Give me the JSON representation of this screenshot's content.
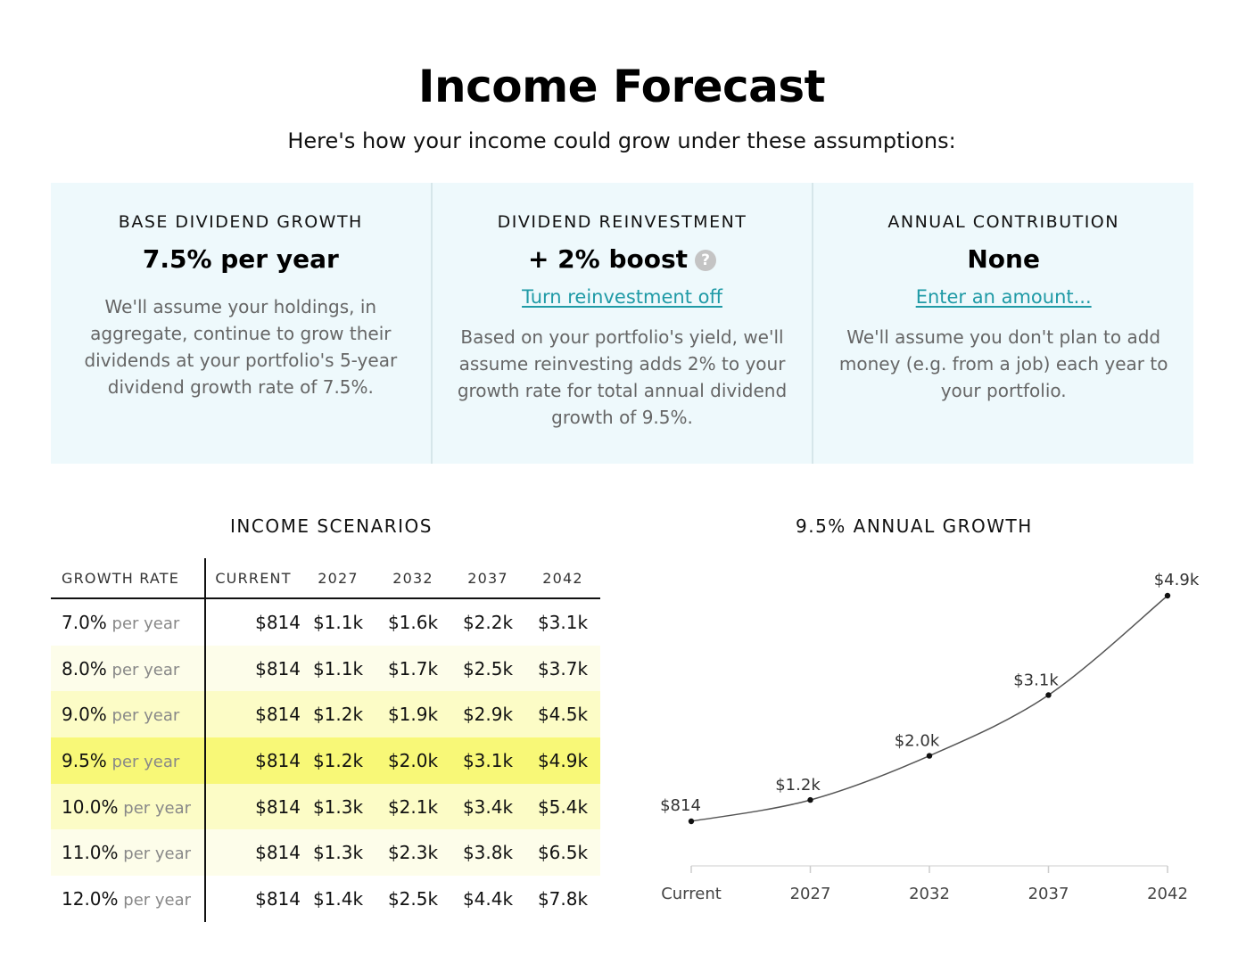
{
  "page": {
    "title": "Income Forecast",
    "subtitle": "Here's how your income could grow under these assumptions:"
  },
  "assumptions": [
    {
      "heading": "BASE DIVIDEND GROWTH",
      "value": "7.5% per year",
      "link": "",
      "description": "We'll assume your holdings, in aggregate, continue to grow their dividends at your portfolio's 5-year dividend growth rate of 7.5%."
    },
    {
      "heading": "DIVIDEND REINVESTMENT",
      "value": "+ 2% boost",
      "help_icon": "?",
      "link": "Turn reinvestment off",
      "description": "Based on your portfolio's yield, we'll assume reinvesting adds 2% to your growth rate for total annual dividend growth of 9.5%."
    },
    {
      "heading": "ANNUAL CONTRIBUTION",
      "value": "None",
      "link": "Enter an amount...",
      "description": "We'll assume you don't plan to add money (e.g. from a job) each year to your portfolio."
    }
  ],
  "scenarios": {
    "heading": "INCOME SCENARIOS",
    "columns": [
      "GROWTH RATE",
      "CURRENT",
      "2027",
      "2032",
      "2037",
      "2042"
    ],
    "per_year_label": "per year",
    "selected_rate": "9.5%",
    "rows": [
      {
        "rate": "7.0%",
        "values": [
          "$814",
          "$1.1k",
          "$1.6k",
          "$2.2k",
          "$3.1k"
        ]
      },
      {
        "rate": "8.0%",
        "values": [
          "$814",
          "$1.1k",
          "$1.7k",
          "$2.5k",
          "$3.7k"
        ]
      },
      {
        "rate": "9.0%",
        "values": [
          "$814",
          "$1.2k",
          "$1.9k",
          "$2.9k",
          "$4.5k"
        ]
      },
      {
        "rate": "9.5%",
        "values": [
          "$814",
          "$1.2k",
          "$2.0k",
          "$3.1k",
          "$4.9k"
        ]
      },
      {
        "rate": "10.0%",
        "values": [
          "$814",
          "$1.3k",
          "$2.1k",
          "$3.4k",
          "$5.4k"
        ]
      },
      {
        "rate": "11.0%",
        "values": [
          "$814",
          "$1.3k",
          "$2.3k",
          "$3.8k",
          "$6.5k"
        ]
      },
      {
        "rate": "12.0%",
        "values": [
          "$814",
          "$1.4k",
          "$2.5k",
          "$4.4k",
          "$7.8k"
        ]
      }
    ],
    "row_colors": [
      "#ffffff",
      "#fdfdea",
      "#fcfcc6",
      "#f8f877",
      "#fcfcc6",
      "#fdfdea",
      "#ffffff"
    ]
  },
  "chart_data": {
    "type": "line",
    "title": "9.5% ANNUAL GROWTH",
    "categories": [
      "Current",
      "2027",
      "2032",
      "2037",
      "2042"
    ],
    "series": [
      {
        "values": [
          814,
          1200,
          2000,
          3100,
          4900
        ],
        "labels": [
          "$814",
          "$1.2k",
          "$2.0k",
          "$3.1k",
          "$4.9k"
        ]
      }
    ],
    "xlabel": "",
    "ylabel": "",
    "ylim": [
      814,
      4900
    ],
    "grid": false,
    "line_color": "#555555"
  }
}
